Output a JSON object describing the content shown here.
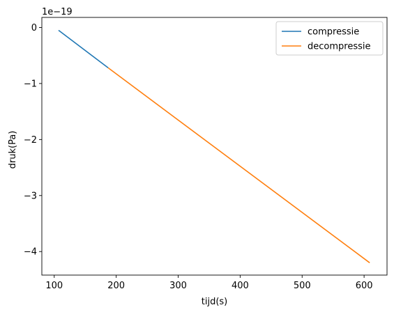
{
  "chart_data": {
    "type": "line",
    "title": "",
    "xlabel": "tijd(s)",
    "ylabel": "druk(Pa)",
    "offset_label": "1e−19",
    "xlim": [
      80,
      637
    ],
    "ylim": [
      -4.42,
      0.18
    ],
    "x_ticks": [
      100,
      200,
      300,
      400,
      500,
      600
    ],
    "x_tick_labels": [
      "100",
      "200",
      "300",
      "400",
      "500",
      "600"
    ],
    "y_ticks": [
      0,
      -1,
      -2,
      -3,
      -4
    ],
    "y_tick_labels": [
      "0",
      "−1",
      "−2",
      "−3",
      "−4"
    ],
    "grid": false,
    "legend_position": "top-right",
    "series": [
      {
        "name": "compressie",
        "color": "#1f77b4",
        "x": [
          107,
          187
        ],
        "y": [
          -0.05,
          -0.72
        ]
      },
      {
        "name": "decompressie",
        "color": "#ff7f0e",
        "x": [
          187,
          609
        ],
        "y": [
          -0.72,
          -4.2
        ]
      }
    ]
  }
}
